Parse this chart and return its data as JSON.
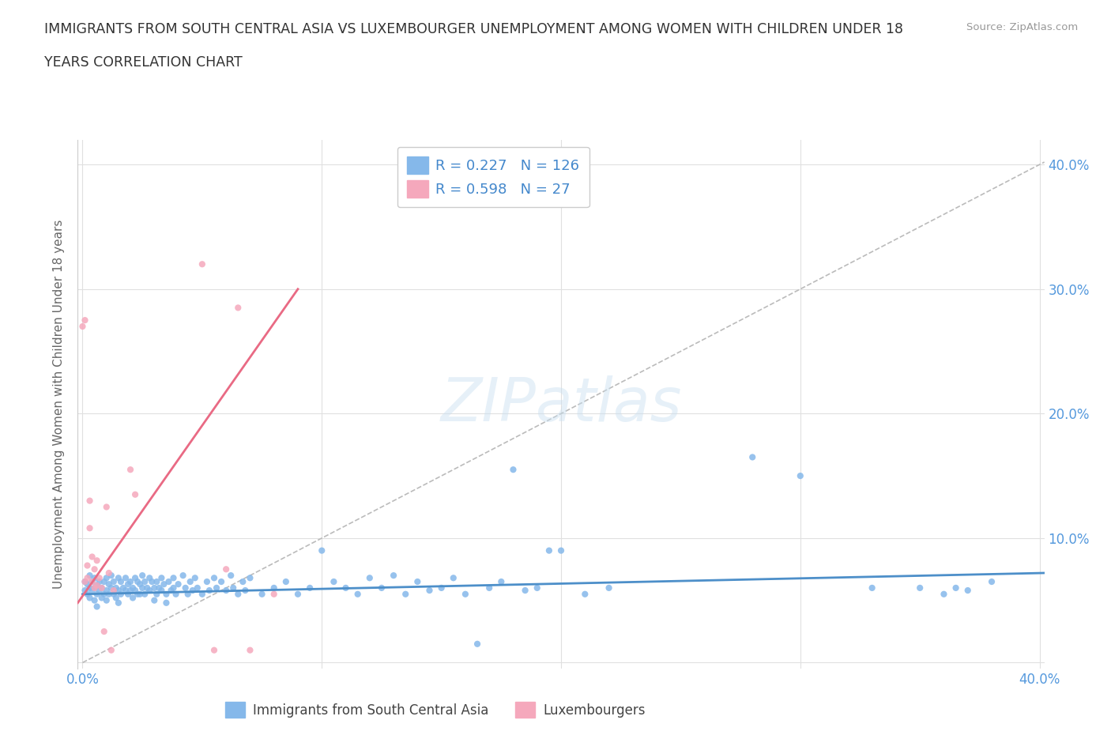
{
  "title_line1": "IMMIGRANTS FROM SOUTH CENTRAL ASIA VS LUXEMBOURGER UNEMPLOYMENT AMONG WOMEN WITH CHILDREN UNDER 18",
  "title_line2": "YEARS CORRELATION CHART",
  "source_text": "Source: ZipAtlas.com",
  "ylabel": "Unemployment Among Women with Children Under 18 years",
  "xlim": [
    -0.002,
    0.402
  ],
  "ylim": [
    -0.005,
    0.42
  ],
  "xticks": [
    0.0,
    0.1,
    0.2,
    0.3,
    0.4
  ],
  "yticks": [
    0.0,
    0.1,
    0.2,
    0.3,
    0.4
  ],
  "xticklabels": [
    "0.0%",
    "",
    "",
    "",
    "40.0%"
  ],
  "yticklabels_right": [
    "",
    "10.0%",
    "20.0%",
    "30.0%",
    "40.0%"
  ],
  "watermark": "ZIPatlas",
  "series1_label": "Immigrants from South Central Asia",
  "series1_color": "#85b8ea",
  "series1_R": 0.227,
  "series1_N": 126,
  "series2_label": "Luxembourgers",
  "series2_color": "#f5a8bc",
  "series2_R": 0.598,
  "series2_N": 27,
  "trend1_color": "#4d8fc9",
  "trend2_color": "#e96a84",
  "ref_line_color": "#bbbbbb",
  "background_color": "#ffffff",
  "grid_color": "#e0e0e0",
  "title_color": "#333333",
  "axis_label_color": "#666666",
  "tick_label_color": "#5599dd",
  "legend_R_color": "#4488cc",
  "blue_scatter": [
    [
      0.001,
      0.065
    ],
    [
      0.001,
      0.058
    ],
    [
      0.002,
      0.063
    ],
    [
      0.002,
      0.055
    ],
    [
      0.003,
      0.07
    ],
    [
      0.003,
      0.06
    ],
    [
      0.003,
      0.052
    ],
    [
      0.004,
      0.065
    ],
    [
      0.004,
      0.058
    ],
    [
      0.005,
      0.068
    ],
    [
      0.005,
      0.06
    ],
    [
      0.005,
      0.05
    ],
    [
      0.006,
      0.062
    ],
    [
      0.006,
      0.055
    ],
    [
      0.006,
      0.045
    ],
    [
      0.007,
      0.065
    ],
    [
      0.007,
      0.058
    ],
    [
      0.008,
      0.06
    ],
    [
      0.008,
      0.052
    ],
    [
      0.009,
      0.065
    ],
    [
      0.009,
      0.055
    ],
    [
      0.01,
      0.068
    ],
    [
      0.01,
      0.058
    ],
    [
      0.01,
      0.05
    ],
    [
      0.011,
      0.063
    ],
    [
      0.011,
      0.055
    ],
    [
      0.012,
      0.07
    ],
    [
      0.012,
      0.06
    ],
    [
      0.013,
      0.065
    ],
    [
      0.013,
      0.055
    ],
    [
      0.014,
      0.06
    ],
    [
      0.014,
      0.052
    ],
    [
      0.015,
      0.068
    ],
    [
      0.015,
      0.058
    ],
    [
      0.015,
      0.048
    ],
    [
      0.016,
      0.065
    ],
    [
      0.016,
      0.055
    ],
    [
      0.017,
      0.06
    ],
    [
      0.018,
      0.068
    ],
    [
      0.018,
      0.058
    ],
    [
      0.019,
      0.063
    ],
    [
      0.019,
      0.055
    ],
    [
      0.02,
      0.065
    ],
    [
      0.02,
      0.058
    ],
    [
      0.021,
      0.06
    ],
    [
      0.021,
      0.052
    ],
    [
      0.022,
      0.068
    ],
    [
      0.022,
      0.058
    ],
    [
      0.023,
      0.065
    ],
    [
      0.023,
      0.055
    ],
    [
      0.024,
      0.063
    ],
    [
      0.024,
      0.055
    ],
    [
      0.025,
      0.07
    ],
    [
      0.025,
      0.06
    ],
    [
      0.026,
      0.065
    ],
    [
      0.026,
      0.055
    ],
    [
      0.027,
      0.06
    ],
    [
      0.028,
      0.068
    ],
    [
      0.028,
      0.058
    ],
    [
      0.029,
      0.065
    ],
    [
      0.03,
      0.06
    ],
    [
      0.03,
      0.05
    ],
    [
      0.031,
      0.065
    ],
    [
      0.031,
      0.055
    ],
    [
      0.032,
      0.06
    ],
    [
      0.033,
      0.068
    ],
    [
      0.033,
      0.058
    ],
    [
      0.034,
      0.063
    ],
    [
      0.035,
      0.055
    ],
    [
      0.035,
      0.048
    ],
    [
      0.036,
      0.065
    ],
    [
      0.037,
      0.058
    ],
    [
      0.038,
      0.068
    ],
    [
      0.038,
      0.06
    ],
    [
      0.039,
      0.055
    ],
    [
      0.04,
      0.063
    ],
    [
      0.042,
      0.07
    ],
    [
      0.043,
      0.06
    ],
    [
      0.044,
      0.055
    ],
    [
      0.045,
      0.065
    ],
    [
      0.046,
      0.058
    ],
    [
      0.047,
      0.068
    ],
    [
      0.048,
      0.06
    ],
    [
      0.05,
      0.055
    ],
    [
      0.052,
      0.065
    ],
    [
      0.053,
      0.058
    ],
    [
      0.055,
      0.068
    ],
    [
      0.056,
      0.06
    ],
    [
      0.058,
      0.065
    ],
    [
      0.06,
      0.058
    ],
    [
      0.062,
      0.07
    ],
    [
      0.063,
      0.06
    ],
    [
      0.065,
      0.055
    ],
    [
      0.067,
      0.065
    ],
    [
      0.068,
      0.058
    ],
    [
      0.07,
      0.068
    ],
    [
      0.075,
      0.055
    ],
    [
      0.08,
      0.06
    ],
    [
      0.085,
      0.065
    ],
    [
      0.09,
      0.055
    ],
    [
      0.095,
      0.06
    ],
    [
      0.1,
      0.09
    ],
    [
      0.105,
      0.065
    ],
    [
      0.11,
      0.06
    ],
    [
      0.115,
      0.055
    ],
    [
      0.12,
      0.068
    ],
    [
      0.125,
      0.06
    ],
    [
      0.13,
      0.07
    ],
    [
      0.135,
      0.055
    ],
    [
      0.14,
      0.065
    ],
    [
      0.145,
      0.058
    ],
    [
      0.15,
      0.06
    ],
    [
      0.155,
      0.068
    ],
    [
      0.16,
      0.055
    ],
    [
      0.165,
      0.015
    ],
    [
      0.17,
      0.06
    ],
    [
      0.175,
      0.065
    ],
    [
      0.18,
      0.155
    ],
    [
      0.185,
      0.058
    ],
    [
      0.19,
      0.06
    ],
    [
      0.195,
      0.09
    ],
    [
      0.2,
      0.09
    ],
    [
      0.21,
      0.055
    ],
    [
      0.22,
      0.06
    ],
    [
      0.28,
      0.165
    ],
    [
      0.3,
      0.15
    ],
    [
      0.33,
      0.06
    ],
    [
      0.35,
      0.06
    ],
    [
      0.36,
      0.055
    ],
    [
      0.365,
      0.06
    ],
    [
      0.37,
      0.058
    ],
    [
      0.38,
      0.065
    ]
  ],
  "pink_scatter": [
    [
      0.0,
      0.27
    ],
    [
      0.001,
      0.275
    ],
    [
      0.001,
      0.065
    ],
    [
      0.002,
      0.078
    ],
    [
      0.002,
      0.068
    ],
    [
      0.003,
      0.13
    ],
    [
      0.003,
      0.108
    ],
    [
      0.004,
      0.085
    ],
    [
      0.004,
      0.065
    ],
    [
      0.005,
      0.075
    ],
    [
      0.005,
      0.06
    ],
    [
      0.006,
      0.082
    ],
    [
      0.006,
      0.062
    ],
    [
      0.007,
      0.068
    ],
    [
      0.008,
      0.06
    ],
    [
      0.009,
      0.025
    ],
    [
      0.01,
      0.125
    ],
    [
      0.011,
      0.072
    ],
    [
      0.012,
      0.01
    ],
    [
      0.013,
      0.058
    ],
    [
      0.02,
      0.155
    ],
    [
      0.022,
      0.135
    ],
    [
      0.05,
      0.32
    ],
    [
      0.055,
      0.01
    ],
    [
      0.06,
      0.075
    ],
    [
      0.065,
      0.285
    ],
    [
      0.07,
      0.01
    ],
    [
      0.08,
      0.055
    ]
  ],
  "trend1_x": [
    0.0,
    0.402
  ],
  "trend1_y": [
    0.055,
    0.072
  ],
  "trend2_x": [
    -0.002,
    0.09
  ],
  "trend2_y": [
    0.048,
    0.3
  ],
  "ref_line_x": [
    0.0,
    0.402
  ],
  "ref_line_y": [
    0.0,
    0.402
  ]
}
